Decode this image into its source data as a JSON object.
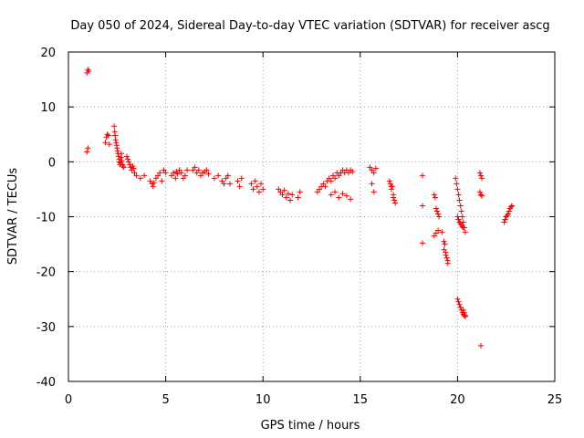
{
  "chart_data": {
    "type": "scatter",
    "title": "Day 050 of 2024, Sidereal Day-to-day VTEC variation (SDTVAR) for receiver ascg",
    "xlabel": "GPS time / hours",
    "ylabel": "SDTVAR / TECUs",
    "xlim": [
      0,
      25
    ],
    "ylim": [
      -40,
      20
    ],
    "xticks": [
      0,
      5,
      10,
      15,
      20,
      25
    ],
    "yticks": [
      -40,
      -30,
      -20,
      -10,
      0,
      10,
      20
    ],
    "xtick_labels": [
      "0",
      "5",
      "10",
      "15",
      "20",
      "25"
    ],
    "ytick_labels": [
      "-40",
      "-30",
      "-20",
      "-10",
      "0",
      "10",
      "20"
    ],
    "grid": true,
    "marker": "+",
    "marker_color": "#ff0000",
    "series": [
      {
        "name": "SDTVAR",
        "x": [
          0.95,
          1.0,
          1.05,
          1.0,
          0.95,
          1.9,
          1.95,
          2.0,
          2.05,
          2.1,
          2.35,
          2.38,
          2.4,
          2.42,
          2.45,
          2.48,
          2.5,
          2.52,
          2.55,
          2.58,
          2.6,
          2.62,
          2.65,
          2.68,
          2.7,
          2.72,
          2.75,
          2.78,
          2.8,
          2.85,
          3.0,
          3.05,
          3.1,
          3.15,
          3.2,
          3.25,
          3.3,
          3.35,
          3.4,
          3.5,
          3.7,
          3.9,
          4.2,
          4.3,
          4.35,
          4.4,
          4.5,
          4.6,
          4.7,
          4.8,
          4.9,
          5.0,
          5.3,
          5.4,
          5.5,
          5.55,
          5.6,
          5.7,
          5.8,
          5.9,
          6.0,
          6.1,
          6.4,
          6.5,
          6.6,
          6.7,
          6.8,
          6.9,
          7.0,
          7.1,
          7.2,
          7.5,
          7.7,
          7.9,
          8.0,
          8.1,
          8.2,
          8.3,
          8.7,
          8.8,
          8.9,
          9.4,
          9.5,
          9.6,
          9.7,
          9.8,
          9.9,
          10.0,
          10.8,
          10.9,
          11.0,
          11.1,
          11.2,
          11.3,
          11.4,
          11.5,
          11.8,
          11.9,
          12.8,
          12.9,
          13.0,
          13.1,
          13.2,
          13.3,
          13.4,
          13.5,
          13.6,
          13.7,
          13.8,
          13.9,
          14.0,
          14.1,
          14.2,
          14.3,
          14.4,
          14.5,
          14.6,
          13.5,
          13.7,
          13.9,
          14.1,
          14.3,
          14.5,
          15.5,
          15.6,
          15.7,
          15.8,
          15.6,
          15.7,
          16.5,
          16.55,
          16.6,
          16.65,
          16.7,
          16.75,
          16.8,
          16.6,
          16.7,
          18.2,
          18.2,
          18.2,
          18.8,
          18.85,
          18.9,
          18.95,
          19.0,
          19.05,
          18.8,
          18.9,
          19.0,
          19.2,
          19.3,
          19.4,
          19.5,
          19.3,
          19.35,
          19.4,
          19.45,
          19.5,
          19.9,
          19.95,
          20.0,
          20.05,
          20.1,
          20.15,
          20.2,
          20.25,
          20.3,
          20.35,
          20.4,
          20.0,
          20.05,
          20.1,
          20.15,
          20.2,
          20.25,
          20.3,
          20.35,
          20.4,
          20.4,
          20.35,
          20.3,
          20.0,
          20.05,
          20.1,
          20.15,
          20.2,
          20.25,
          20.3,
          21.15,
          21.2,
          21.25,
          21.15,
          21.2,
          21.25,
          21.2,
          22.4,
          22.45,
          22.5,
          22.55,
          22.6,
          22.65,
          22.7,
          22.75,
          22.8
        ],
        "y": [
          16.2,
          16.8,
          16.5,
          2.5,
          1.8,
          3.5,
          4.5,
          5.0,
          4.8,
          3.2,
          6.5,
          5.5,
          4.8,
          4.0,
          3.5,
          3.0,
          2.5,
          2.0,
          1.5,
          1.0,
          0.5,
          0.0,
          -0.5,
          -0.2,
          0.8,
          1.5,
          0.2,
          -0.5,
          -0.8,
          -1.0,
          1.0,
          0.5,
          0.0,
          -0.5,
          -1.0,
          -1.5,
          -0.8,
          -1.2,
          -2.0,
          -2.5,
          -3.0,
          -2.5,
          -3.5,
          -4.0,
          -4.5,
          -3.8,
          -3.0,
          -2.5,
          -2.0,
          -3.5,
          -1.5,
          -2.0,
          -2.5,
          -2.0,
          -3.0,
          -1.8,
          -2.2,
          -1.5,
          -2.0,
          -3.0,
          -2.5,
          -1.5,
          -1.5,
          -1.0,
          -2.0,
          -1.5,
          -2.5,
          -2.0,
          -1.8,
          -1.5,
          -2.2,
          -3.0,
          -2.5,
          -3.5,
          -4.0,
          -3.0,
          -2.5,
          -4.0,
          -3.5,
          -4.5,
          -3.0,
          -4.0,
          -5.0,
          -3.5,
          -4.5,
          -5.5,
          -4.0,
          -5.0,
          -5.0,
          -5.5,
          -6.0,
          -5.2,
          -6.5,
          -5.8,
          -7.0,
          -6.0,
          -6.5,
          -5.5,
          -5.5,
          -5.0,
          -4.5,
          -4.0,
          -4.5,
          -3.5,
          -3.0,
          -3.5,
          -2.5,
          -3.0,
          -2.0,
          -2.5,
          -2.0,
          -1.5,
          -2.0,
          -1.5,
          -2.0,
          -1.5,
          -1.8,
          -6.0,
          -5.5,
          -6.5,
          -5.8,
          -6.2,
          -6.8,
          -1.0,
          -1.5,
          -2.0,
          -1.2,
          -4.0,
          -5.5,
          -3.5,
          -4.0,
          -5.0,
          -4.5,
          -6.0,
          -7.0,
          -7.5,
          -4.5,
          -6.5,
          -2.5,
          -8.0,
          -14.8,
          -6.0,
          -6.5,
          -8.5,
          -9.0,
          -9.5,
          -10.0,
          -13.5,
          -13.0,
          -12.5,
          -12.8,
          -16.0,
          -17.0,
          -18.5,
          -14.5,
          -15.0,
          -16.5,
          -17.5,
          -18.0,
          -3.0,
          -4.0,
          -5.0,
          -6.0,
          -7.0,
          -8.0,
          -9.0,
          -10.0,
          -11.0,
          -12.0,
          -12.8,
          -25.0,
          -25.5,
          -26.0,
          -26.5,
          -27.0,
          -27.5,
          -27.8,
          -28.0,
          -28.2,
          -28.0,
          -27.5,
          -27.0,
          -10.0,
          -10.5,
          -11.0,
          -11.2,
          -11.5,
          -11.8,
          -12.0,
          -2.0,
          -2.5,
          -3.0,
          -5.5,
          -6.0,
          -6.2,
          -33.5,
          -11.0,
          -10.5,
          -10.0,
          -9.8,
          -9.5,
          -9.0,
          -8.5,
          -8.2,
          -8.0
        ]
      }
    ]
  }
}
